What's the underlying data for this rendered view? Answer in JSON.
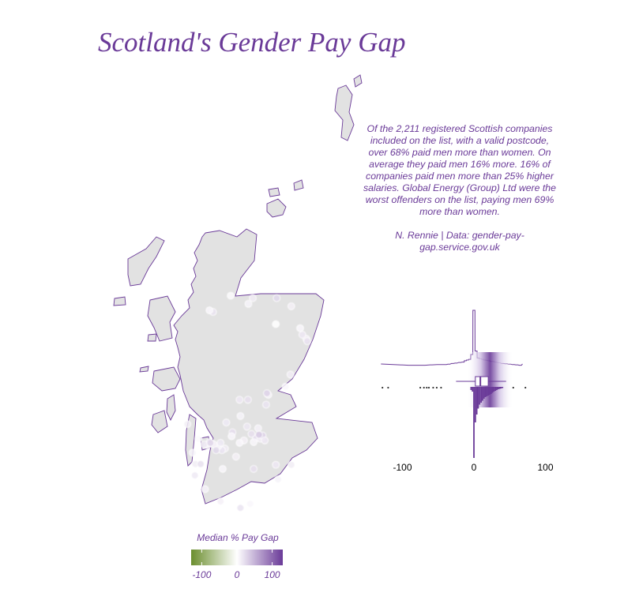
{
  "title": "Scotland's Gender Pay Gap",
  "annotation": {
    "body": "Of the 2,211 registered Scottish companies included on the list, with a valid postcode, over 68% paid men more than women. On average they paid men 16% more. 16% of companies paid men more than 25% higher salaries. Global Energy (Group) Ltd were the worst offenders on the list, paying men 69% more than women.",
    "credit": "N. Rennie | Data: gender-pay-gap.service.gov.uk"
  },
  "colors": {
    "accent": "#6a3a98",
    "land": "#e2e2e2",
    "scale_low": "#6b8e2e",
    "scale_mid": "#ffffff",
    "scale_high": "#6a3a98"
  },
  "chart_data": [
    {
      "type": "scatter",
      "subtype": "map",
      "region": "Scotland",
      "color_variable": "Median % Pay Gap",
      "legend": {
        "title": "Median % Pay Gap",
        "ticks": [
          -100,
          0,
          100
        ],
        "tick_labels": [
          "-100",
          "0",
          "100"
        ],
        "range": [
          -130,
          130
        ],
        "placement": "bottom",
        "colors": [
          "#6b8e2e",
          "#ffffff",
          "#6a3a98"
        ]
      },
      "points": [
        {
          "lon": -2.11,
          "lat": 57.15,
          "gap": 10
        },
        {
          "lon": -2.2,
          "lat": 57.2,
          "gap": 15
        },
        {
          "lon": -2.25,
          "lat": 57.28,
          "gap": 5
        },
        {
          "lon": -2.09,
          "lat": 57.12,
          "gap": 20
        },
        {
          "lon": -2.45,
          "lat": 57.55,
          "gap": 10
        },
        {
          "lon": -2.8,
          "lat": 57.33,
          "gap": 0
        },
        {
          "lon": -2.78,
          "lat": 57.65,
          "gap": 25
        },
        {
          "lon": -3.32,
          "lat": 57.65,
          "gap": 12
        },
        {
          "lon": -3.42,
          "lat": 57.58,
          "gap": 8
        },
        {
          "lon": -4.22,
          "lat": 57.48,
          "gap": 18
        },
        {
          "lon": -4.3,
          "lat": 57.5,
          "gap": 5
        },
        {
          "lon": -3.82,
          "lat": 57.68,
          "gap": 3
        },
        {
          "lon": -3.62,
          "lat": 56.4,
          "gap": 15
        },
        {
          "lon": -3.43,
          "lat": 56.4,
          "gap": 20
        },
        {
          "lon": -2.97,
          "lat": 56.46,
          "gap": 10
        },
        {
          "lon": -3.0,
          "lat": 56.48,
          "gap": 30
        },
        {
          "lon": -2.58,
          "lat": 56.56,
          "gap": 5
        },
        {
          "lon": -2.47,
          "lat": 56.71,
          "gap": 12
        },
        {
          "lon": -3.02,
          "lat": 56.34,
          "gap": 18
        },
        {
          "lon": -3.6,
          "lat": 56.2,
          "gap": 8
        },
        {
          "lon": -3.92,
          "lat": 56.12,
          "gap": 14
        },
        {
          "lon": -3.78,
          "lat": 56.0,
          "gap": 22
        },
        {
          "lon": -3.45,
          "lat": 56.07,
          "gap": 16
        },
        {
          "lon": -3.2,
          "lat": 56.05,
          "gap": 9
        },
        {
          "lon": -3.19,
          "lat": 55.95,
          "gap": 18
        },
        {
          "lon": -3.25,
          "lat": 55.93,
          "gap": 24
        },
        {
          "lon": -3.15,
          "lat": 55.92,
          "gap": 12
        },
        {
          "lon": -3.1,
          "lat": 55.96,
          "gap": 30
        },
        {
          "lon": -3.3,
          "lat": 55.88,
          "gap": 6
        },
        {
          "lon": -3.05,
          "lat": 55.9,
          "gap": 15
        },
        {
          "lon": -3.35,
          "lat": 55.98,
          "gap": 20
        },
        {
          "lon": -3.52,
          "lat": 55.9,
          "gap": 10
        },
        {
          "lon": -3.62,
          "lat": 55.87,
          "gap": 5
        },
        {
          "lon": -3.95,
          "lat": 55.8,
          "gap": 12
        },
        {
          "lon": -4.02,
          "lat": 55.78,
          "gap": 18
        },
        {
          "lon": -4.1,
          "lat": 55.83,
          "gap": 8
        },
        {
          "lon": -4.25,
          "lat": 55.86,
          "gap": 15
        },
        {
          "lon": -4.3,
          "lat": 55.88,
          "gap": 22
        },
        {
          "lon": -4.2,
          "lat": 55.85,
          "gap": 10
        },
        {
          "lon": -4.35,
          "lat": 55.84,
          "gap": 5
        },
        {
          "lon": -4.42,
          "lat": 55.85,
          "gap": 16
        },
        {
          "lon": -4.55,
          "lat": 55.92,
          "gap": 3
        },
        {
          "lon": -4.62,
          "lat": 55.61,
          "gap": 12
        },
        {
          "lon": -4.5,
          "lat": 55.61,
          "gap": 20
        },
        {
          "lon": -4.68,
          "lat": 55.75,
          "gap": 8
        },
        {
          "lon": -4.15,
          "lat": 55.78,
          "gap": 25
        },
        {
          "lon": -4.05,
          "lat": 55.87,
          "gap": 14
        },
        {
          "lon": -3.8,
          "lat": 55.95,
          "gap": 6
        },
        {
          "lon": -3.7,
          "lat": 55.7,
          "gap": 10
        },
        {
          "lon": -2.8,
          "lat": 55.6,
          "gap": 15
        },
        {
          "lon": -2.75,
          "lat": 55.42,
          "gap": 8
        },
        {
          "lon": -2.45,
          "lat": 55.6,
          "gap": 12
        },
        {
          "lon": -3.6,
          "lat": 55.07,
          "gap": 18
        },
        {
          "lon": -3.38,
          "lat": 55.12,
          "gap": 5
        },
        {
          "lon": -4.05,
          "lat": 55.15,
          "gap": 10
        },
        {
          "lon": -4.63,
          "lat": 55.47,
          "gap": 14
        },
        {
          "lon": -4.4,
          "lat": 55.3,
          "gap": 9
        },
        {
          "lon": -3.3,
          "lat": 55.55,
          "gap": 20
        },
        {
          "lon": -4.0,
          "lat": 55.55,
          "gap": 6
        },
        {
          "lon": -4.8,
          "lat": 56.1,
          "gap": 11
        },
        {
          "lon": -3.18,
          "lat": 55.97,
          "gap": 35
        },
        {
          "lon": -4.28,
          "lat": 55.87,
          "gap": 28
        }
      ]
    },
    {
      "type": "histogram",
      "subtype": "histogram with boxplot",
      "x_tick_labels": [
        "-100",
        "0",
        "100"
      ],
      "xlim": [
        -100,
        100
      ],
      "x_ticks": [
        -100,
        0,
        100
      ],
      "upper_histogram": {
        "bins": [
          {
            "x": -90,
            "count": 1
          },
          {
            "x": -80,
            "count": 1
          },
          {
            "x": -70,
            "count": 1
          },
          {
            "x": -60,
            "count": 2
          },
          {
            "x": -50,
            "count": 3
          },
          {
            "x": -40,
            "count": 3
          },
          {
            "x": -35,
            "count": 4
          },
          {
            "x": -30,
            "count": 6
          },
          {
            "x": -25,
            "count": 7
          },
          {
            "x": -20,
            "count": 9
          },
          {
            "x": -15,
            "count": 10
          },
          {
            "x": -12,
            "count": 14
          },
          {
            "x": -9,
            "count": 16
          },
          {
            "x": -6,
            "count": 18
          },
          {
            "x": -3,
            "count": 32
          },
          {
            "x": 0,
            "count": 160
          },
          {
            "x": 3,
            "count": 42
          },
          {
            "x": 6,
            "count": 22
          },
          {
            "x": 9,
            "count": 20
          },
          {
            "x": 12,
            "count": 18
          },
          {
            "x": 15,
            "count": 16
          },
          {
            "x": 18,
            "count": 15
          },
          {
            "x": 21,
            "count": 14
          },
          {
            "x": 24,
            "count": 12
          },
          {
            "x": 27,
            "count": 12
          },
          {
            "x": 30,
            "count": 10
          },
          {
            "x": 35,
            "count": 8
          },
          {
            "x": 40,
            "count": 6
          },
          {
            "x": 45,
            "count": 5
          },
          {
            "x": 50,
            "count": 4
          },
          {
            "x": 55,
            "count": 3
          },
          {
            "x": 60,
            "count": 2
          },
          {
            "x": 65,
            "count": 1
          }
        ]
      },
      "lower_histogram": {
        "bins": [
          {
            "x": -4,
            "count": 8
          },
          {
            "x": -2,
            "count": 12
          },
          {
            "x": 0,
            "count": 180
          },
          {
            "x": 2,
            "count": 90
          },
          {
            "x": 4,
            "count": 70
          },
          {
            "x": 6,
            "count": 55
          },
          {
            "x": 8,
            "count": 45
          },
          {
            "x": 10,
            "count": 40
          },
          {
            "x": 12,
            "count": 35
          },
          {
            "x": 14,
            "count": 30
          },
          {
            "x": 16,
            "count": 26
          },
          {
            "x": 18,
            "count": 24
          },
          {
            "x": 20,
            "count": 22
          },
          {
            "x": 22,
            "count": 20
          },
          {
            "x": 24,
            "count": 18
          },
          {
            "x": 26,
            "count": 15
          },
          {
            "x": 28,
            "count": 12
          },
          {
            "x": 30,
            "count": 10
          },
          {
            "x": 32,
            "count": 8
          },
          {
            "x": 34,
            "count": 6
          },
          {
            "x": 36,
            "count": 5
          },
          {
            "x": 38,
            "count": 4
          },
          {
            "x": 40,
            "count": 3
          }
        ]
      },
      "boxplot": {
        "whisker_low": -25,
        "q1": 2,
        "median": 9,
        "q3": 20,
        "whisker_high": 45
      },
      "outliers": [
        -128,
        -120,
        -75,
        -70,
        -66,
        -63,
        -57,
        -52,
        -46,
        55,
        72
      ]
    }
  ]
}
